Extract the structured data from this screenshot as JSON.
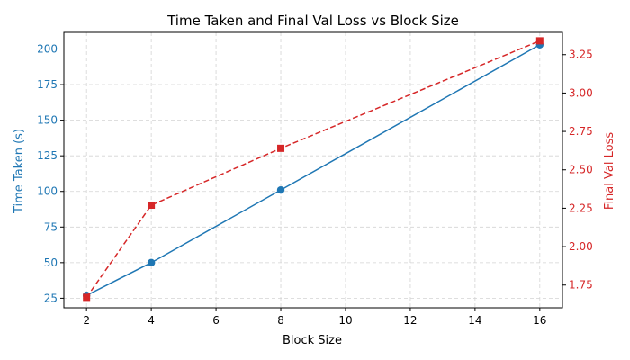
{
  "chart_data": {
    "type": "line",
    "title": "Time Taken and Final Val Loss vs Block Size",
    "xlabel": "Block Size",
    "y1label": "Time Taken (s)",
    "y2label": "Final Val Loss",
    "xlim": [
      1.3,
      16.7
    ],
    "y1lim": [
      18.3,
      211.7
    ],
    "y2lim": [
      1.602,
      3.395
    ],
    "xticks": [
      2,
      4,
      6,
      8,
      10,
      12,
      14,
      16
    ],
    "y1ticks": [
      25,
      50,
      75,
      100,
      125,
      150,
      175,
      200
    ],
    "y2ticks": [
      1.75,
      2.0,
      2.25,
      2.5,
      2.75,
      3.0,
      3.25
    ],
    "y1tick_labels": [
      "25",
      "50",
      "75",
      "100",
      "125",
      "150",
      "175",
      "200"
    ],
    "y2tick_labels": [
      "1.75",
      "2.00",
      "2.25",
      "2.50",
      "2.75",
      "3.00",
      "3.25"
    ],
    "xtick_labels": [
      "2",
      "4",
      "6",
      "8",
      "10",
      "12",
      "14",
      "16"
    ],
    "grid": true,
    "x": [
      2,
      4,
      8,
      16
    ],
    "series": [
      {
        "axis": "left",
        "values": [
          27,
          50,
          101,
          203
        ],
        "color": "#1f77b4",
        "marker": "circle",
        "linestyle": "solid"
      },
      {
        "axis": "right",
        "values": [
          1.67,
          2.27,
          2.64,
          3.34
        ],
        "color": "#d62728",
        "marker": "square",
        "linestyle": "dashed"
      }
    ]
  }
}
